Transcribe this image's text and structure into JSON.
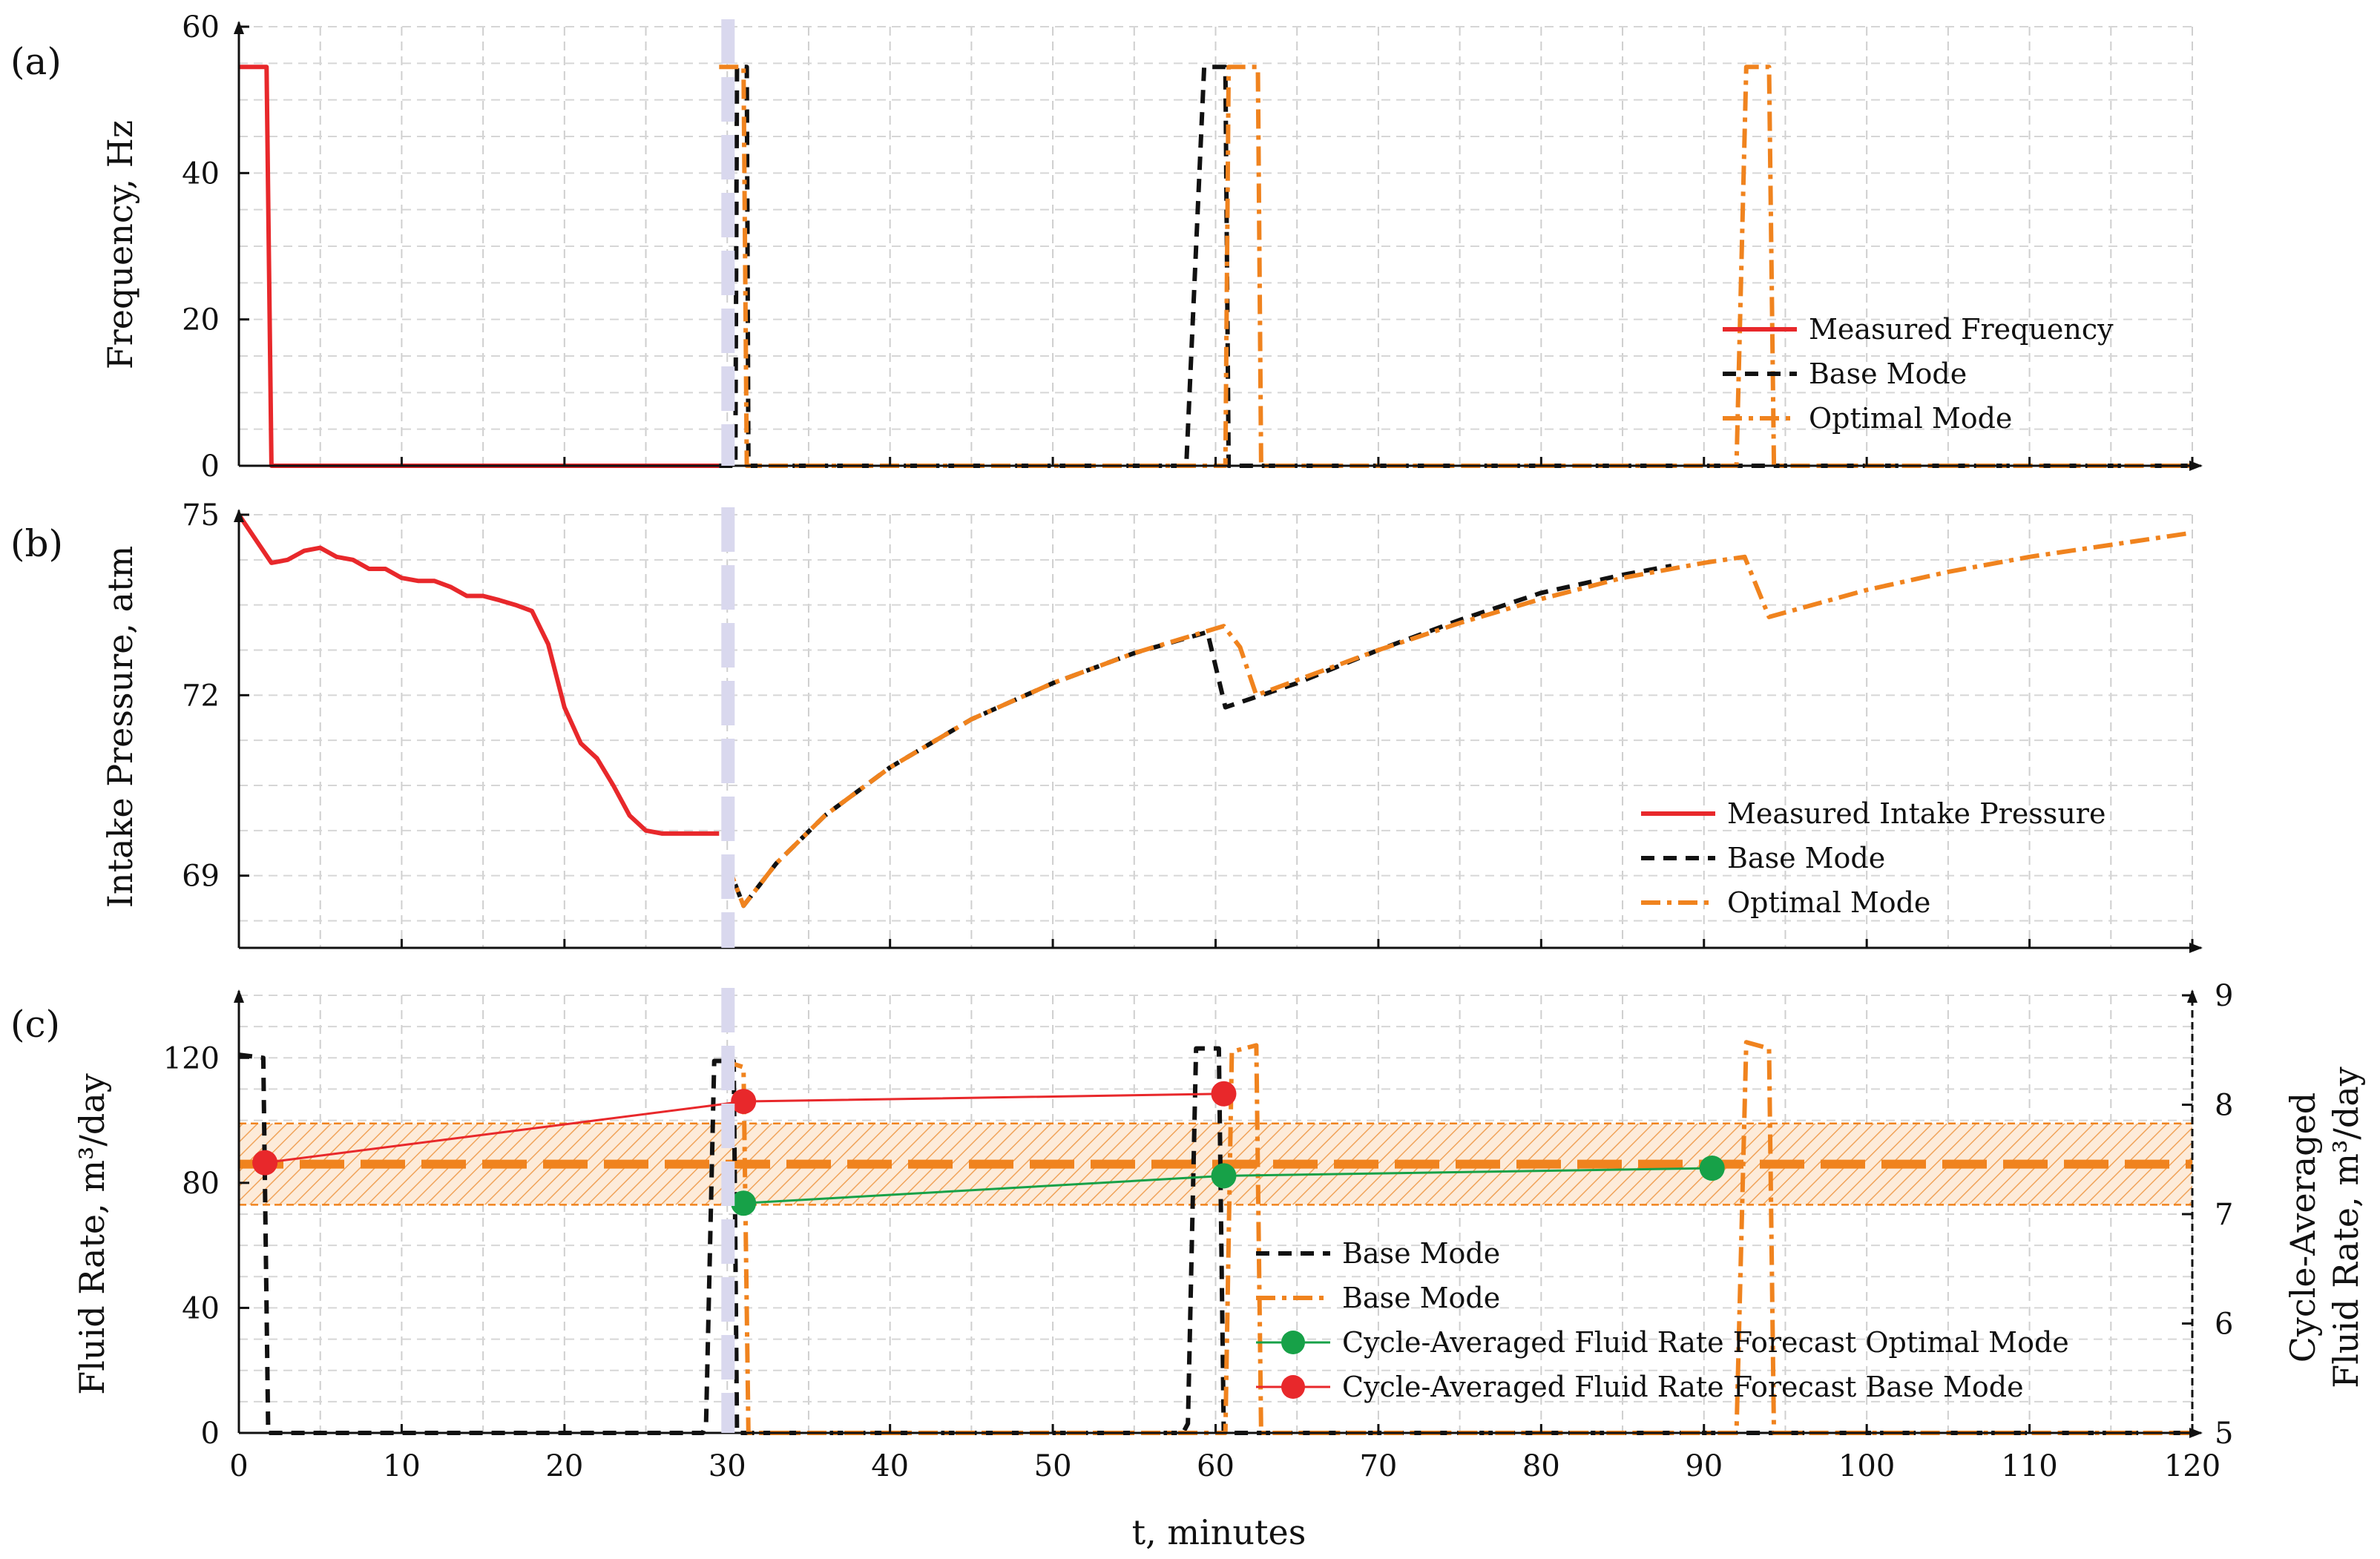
{
  "chart_data": [
    {
      "panel_label": "(a)",
      "type": "line",
      "ylabel": "Frequency, Hz",
      "xlim": [
        0,
        120
      ],
      "ylim": [
        0,
        60
      ],
      "yticks": [
        "0",
        "20",
        "40",
        "60"
      ],
      "grid": true,
      "legend_position": "right-middle",
      "series": [
        {
          "name": "Measured Frequency",
          "color": "#e8282b",
          "style": "solid",
          "points": [
            [
              0,
              54.5
            ],
            [
              1.7,
              54.5
            ],
            [
              2,
              0
            ],
            [
              29.5,
              0
            ]
          ]
        },
        {
          "name": "Base Mode",
          "color": "#111111",
          "style": "dashed",
          "points": [
            [
              29.5,
              0
            ],
            [
              30.5,
              0
            ],
            [
              30.6,
              54.5
            ],
            [
              31.2,
              54.5
            ],
            [
              31.3,
              0
            ],
            [
              58,
              0
            ],
            [
              58.2,
              0
            ],
            [
              59.3,
              54.5
            ],
            [
              60.6,
              54.5
            ],
            [
              60.8,
              0
            ],
            [
              120,
              0
            ]
          ]
        },
        {
          "name": "Optimal Mode",
          "color": "#f0831e",
          "style": "dashdot",
          "points": [
            [
              29.5,
              54.5
            ],
            [
              31,
              54.5
            ],
            [
              31.2,
              0
            ],
            [
              60.6,
              0
            ],
            [
              60.8,
              54.5
            ],
            [
              62.6,
              54.5
            ],
            [
              62.8,
              0
            ],
            [
              92,
              0
            ],
            [
              92.6,
              54.5
            ],
            [
              94,
              54.5
            ],
            [
              94.3,
              0
            ],
            [
              120,
              0
            ]
          ]
        }
      ]
    },
    {
      "panel_label": "(b)",
      "type": "line",
      "ylabel": "Intake Pressure, atm",
      "xlim": [
        0,
        120
      ],
      "ylim": [
        67.8,
        75
      ],
      "yticks": [
        "69",
        "72",
        "75"
      ],
      "ytick_values": [
        69,
        72,
        75
      ],
      "grid": true,
      "legend_position": "right-lower",
      "series": [
        {
          "name": "Measured Intake Pressure",
          "color": "#e8282b",
          "style": "solid",
          "points": [
            [
              0,
              75
            ],
            [
              1,
              74.6
            ],
            [
              2,
              74.2
            ],
            [
              3,
              74.25
            ],
            [
              4,
              74.4
            ],
            [
              5,
              74.45
            ],
            [
              6,
              74.3
            ],
            [
              7,
              74.25
            ],
            [
              8,
              74.1
            ],
            [
              9,
              74.1
            ],
            [
              10,
              73.95
            ],
            [
              11,
              73.9
            ],
            [
              12,
              73.9
            ],
            [
              13,
              73.8
            ],
            [
              14,
              73.65
            ],
            [
              15,
              73.65
            ],
            [
              16,
              73.58
            ],
            [
              17,
              73.5
            ],
            [
              18,
              73.4
            ],
            [
              19,
              72.85
            ],
            [
              20,
              71.8
            ],
            [
              21,
              71.2
            ],
            [
              22,
              70.95
            ],
            [
              23,
              70.5
            ],
            [
              24,
              70.0
            ],
            [
              25,
              69.75
            ],
            [
              26,
              69.7
            ],
            [
              28,
              69.7
            ],
            [
              29.5,
              69.7
            ]
          ]
        },
        {
          "name": "Base Mode",
          "color": "#111111",
          "style": "dashed",
          "points": [
            [
              30,
              69.2
            ],
            [
              31,
              68.5
            ],
            [
              33,
              69.2
            ],
            [
              36,
              70.0
            ],
            [
              40,
              70.8
            ],
            [
              45,
              71.6
            ],
            [
              50,
              72.2
            ],
            [
              55,
              72.7
            ],
            [
              59.5,
              73.05
            ],
            [
              60.6,
              71.8
            ],
            [
              65,
              72.2
            ],
            [
              70,
              72.75
            ],
            [
              75,
              73.25
            ],
            [
              80,
              73.7
            ],
            [
              85,
              74.0
            ],
            [
              88,
              74.15
            ]
          ]
        },
        {
          "name": "Optimal Mode",
          "color": "#f0831e",
          "style": "dashdot",
          "points": [
            [
              30,
              69.2
            ],
            [
              31,
              68.5
            ],
            [
              33,
              69.2
            ],
            [
              36,
              70.0
            ],
            [
              40,
              70.8
            ],
            [
              45,
              71.6
            ],
            [
              50,
              72.2
            ],
            [
              55,
              72.7
            ],
            [
              60.5,
              73.15
            ],
            [
              61.5,
              72.8
            ],
            [
              62.5,
              72.0
            ],
            [
              65,
              72.25
            ],
            [
              70,
              72.75
            ],
            [
              75,
              73.2
            ],
            [
              80,
              73.6
            ],
            [
              85,
              73.95
            ],
            [
              90,
              74.2
            ],
            [
              92.5,
              74.3
            ],
            [
              94,
              73.3
            ],
            [
              100,
              73.75
            ],
            [
              105,
              74.05
            ],
            [
              110,
              74.3
            ],
            [
              115,
              74.5
            ],
            [
              120,
              74.7
            ]
          ]
        }
      ]
    },
    {
      "panel_label": "(c)",
      "type": "line",
      "xlabel": "t, minutes",
      "ylabel": "Fluid Rate, m³/day",
      "ylabel_right": "Cycle-Averaged Fluid Rate, m³/day",
      "xlim": [
        0,
        120
      ],
      "ylim": [
        0,
        140
      ],
      "ylim_right": [
        5,
        9
      ],
      "xticks": [
        "0",
        "10",
        "20",
        "30",
        "40",
        "50",
        "60",
        "70",
        "80",
        "90",
        "100",
        "110",
        "120"
      ],
      "xtick_values": [
        0,
        10,
        20,
        30,
        40,
        50,
        60,
        70,
        80,
        90,
        100,
        110,
        120
      ],
      "yticks": [
        "0",
        "40",
        "80",
        "120"
      ],
      "ytick_values": [
        0,
        40,
        80,
        120
      ],
      "yticks_right": [
        "5",
        "6",
        "7",
        "8",
        "9"
      ],
      "ytick_values_right": [
        5,
        6,
        7,
        8,
        9
      ],
      "grid": true,
      "legend_position": "bottom-center",
      "target_band": {
        "center": 86,
        "low": 73,
        "high": 99,
        "color": "#f0831e"
      },
      "series": [
        {
          "name": "Base Mode",
          "color": "#111111",
          "style": "dashed",
          "axis": "left",
          "points": [
            [
              0,
              121
            ],
            [
              1.5,
              120
            ],
            [
              1.8,
              0
            ],
            [
              28.5,
              0
            ],
            [
              28.7,
              3
            ],
            [
              29.2,
              119
            ],
            [
              30.4,
              119
            ],
            [
              30.6,
              0
            ],
            [
              58,
              0
            ],
            [
              58.3,
              3
            ],
            [
              58.8,
              123
            ],
            [
              60.2,
              123
            ],
            [
              60.5,
              0
            ],
            [
              120,
              0
            ]
          ]
        },
        {
          "name": "Base Mode",
          "color": "#f0831e",
          "style": "dashdot",
          "axis": "left",
          "points": [
            [
              29.8,
              119
            ],
            [
              31,
              117
            ],
            [
              31.3,
              0
            ],
            [
              60.6,
              0
            ],
            [
              61,
              122
            ],
            [
              62.5,
              124
            ],
            [
              62.8,
              0
            ],
            [
              92,
              0
            ],
            [
              92.6,
              125
            ],
            [
              94,
              123
            ],
            [
              94.3,
              0
            ],
            [
              120,
              0
            ]
          ]
        },
        {
          "name": "Cycle-Averaged Fluid Rate Forecast Optimal Mode",
          "color": "#17a148",
          "style": "solid-marker",
          "axis": "right",
          "points": [
            [
              31,
              7.1
            ],
            [
              60.5,
              7.35
            ],
            [
              90.5,
              7.42
            ]
          ]
        },
        {
          "name": "Cycle-Averaged Fluid Rate Forecast Base Mode",
          "color": "#e8282b",
          "style": "solid-marker",
          "axis": "right",
          "points": [
            [
              1.6,
              7.47
            ],
            [
              31,
              8.03
            ],
            [
              60.5,
              8.1
            ]
          ]
        }
      ]
    }
  ],
  "marker_line": {
    "x": 29.5,
    "color": "#d9d8ee"
  }
}
